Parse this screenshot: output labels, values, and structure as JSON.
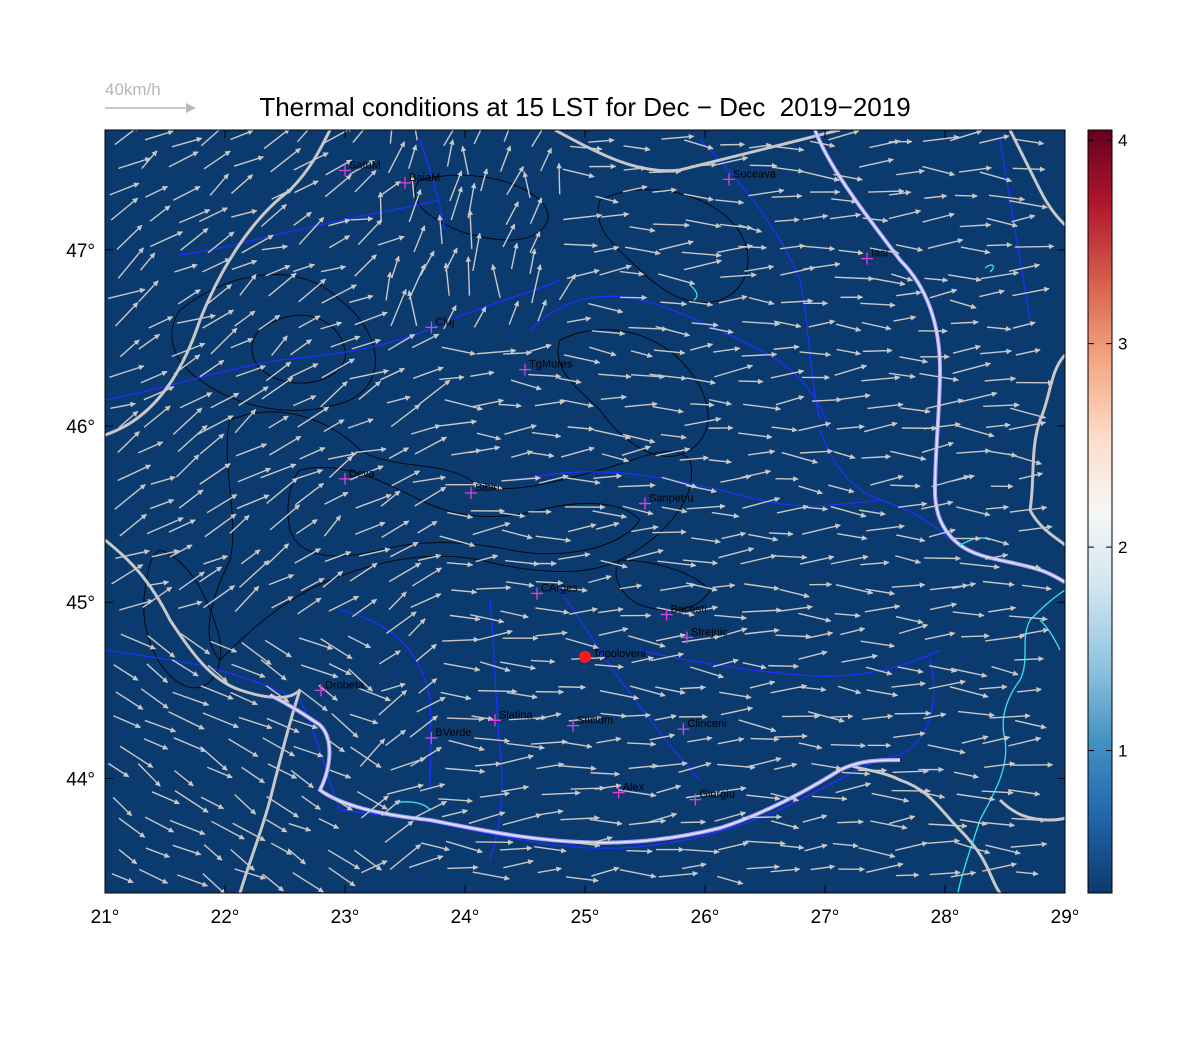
{
  "title": "Thermal conditions at 15 LST for Dec − Dec  2019−2019",
  "wind_legend": {
    "label": "40km/h",
    "color": "#b8b8b8"
  },
  "map": {
    "lon_range": [
      21,
      29
    ],
    "lat_range": [
      43.35,
      47.68
    ],
    "x_ticks": [
      {
        "value": 21,
        "label": "21°"
      },
      {
        "value": 22,
        "label": "22°"
      },
      {
        "value": 23,
        "label": "23°"
      },
      {
        "value": 24,
        "label": "24°"
      },
      {
        "value": 25,
        "label": "25°"
      },
      {
        "value": 26,
        "label": "26°"
      },
      {
        "value": 27,
        "label": "27°"
      },
      {
        "value": 28,
        "label": "28°"
      },
      {
        "value": 29,
        "label": "29°"
      }
    ],
    "y_ticks": [
      {
        "value": 44,
        "label": "44°"
      },
      {
        "value": 45,
        "label": "45°"
      },
      {
        "value": 46,
        "label": "46°"
      },
      {
        "value": 47,
        "label": "47°"
      }
    ],
    "fill_color": "#0b3a6e",
    "contour_color": "#000000",
    "river_color": "#1f2fff",
    "border_color": "#c8c8c8",
    "coast_color": "#33e6ee",
    "cities": [
      {
        "name": "SatuM",
        "lon": 23.0,
        "lat": 47.45
      },
      {
        "name": "BaiaM",
        "lon": 23.5,
        "lat": 47.38
      },
      {
        "name": "Suceava",
        "lon": 26.2,
        "lat": 47.4
      },
      {
        "name": "Iasi",
        "lon": 27.35,
        "lat": 46.95
      },
      {
        "name": "Cluj",
        "lon": 23.72,
        "lat": 46.56
      },
      {
        "name": "TgMures",
        "lon": 24.5,
        "lat": 46.32
      },
      {
        "name": "Deva",
        "lon": 23.0,
        "lat": 45.7
      },
      {
        "name": "Sibiu",
        "lon": 24.05,
        "lat": 45.62
      },
      {
        "name": "Sanpetru",
        "lon": 25.5,
        "lat": 45.56
      },
      {
        "name": "CArges",
        "lon": 24.6,
        "lat": 45.05
      },
      {
        "name": "Bacesti",
        "lon": 25.68,
        "lat": 44.93
      },
      {
        "name": "Strejnic",
        "lon": 25.85,
        "lat": 44.8
      },
      {
        "name": "Drobeta",
        "lon": 22.8,
        "lat": 44.5
      },
      {
        "name": "Slatina",
        "lon": 24.25,
        "lat": 44.33
      },
      {
        "name": "Sticlum",
        "lon": 24.9,
        "lat": 44.3
      },
      {
        "name": "Clinceni",
        "lon": 25.82,
        "lat": 44.28
      },
      {
        "name": "BVerde",
        "lon": 23.72,
        "lat": 44.23
      },
      {
        "name": "Alex",
        "lon": 25.28,
        "lat": 43.92
      },
      {
        "name": "Giurgiu",
        "lon": 25.92,
        "lat": 43.88
      }
    ],
    "highlight": {
      "name": "Topoloveni",
      "lon": 25.0,
      "lat": 44.69,
      "color": "#ff1a1a"
    }
  },
  "colorbar": {
    "min": 0.3,
    "max": 4.05,
    "ticks": [
      {
        "value": 1,
        "label": "1"
      },
      {
        "value": 2,
        "label": "2"
      },
      {
        "value": 3,
        "label": "3"
      },
      {
        "value": 4,
        "label": "4"
      }
    ],
    "colors": [
      "#0b3a6e",
      "#2166ac",
      "#4393c3",
      "#92c5de",
      "#d1e5f0",
      "#f7f7f7",
      "#fddbc7",
      "#f4a582",
      "#d6604d",
      "#b2182b",
      "#67001f"
    ]
  }
}
